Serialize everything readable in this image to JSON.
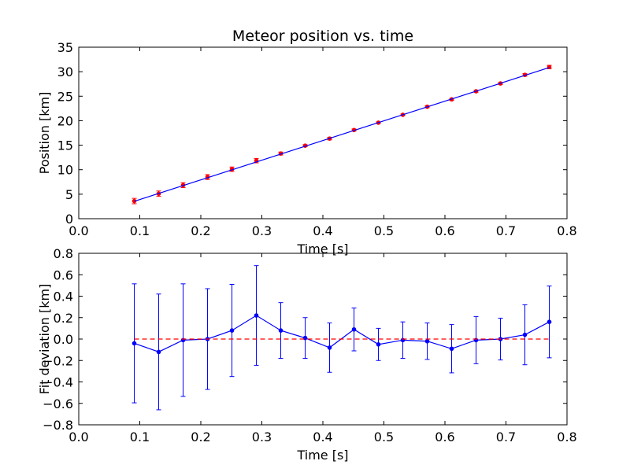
{
  "figure": {
    "title": "Meteor position vs. time"
  },
  "chart_data": [
    {
      "type": "scatter",
      "title": "Meteor position vs. time",
      "xlabel": "Time [s]",
      "ylabel": "Position [km]",
      "xlim": [
        0.0,
        0.8
      ],
      "ylim": [
        0,
        35
      ],
      "x_ticks": [
        0.0,
        0.1,
        0.2,
        0.3,
        0.4,
        0.5,
        0.6,
        0.7,
        0.8
      ],
      "x_tick_labels": [
        "0.0",
        "0.1",
        "0.2",
        "0.3",
        "0.4",
        "0.5",
        "0.6",
        "0.7",
        "0.8"
      ],
      "y_ticks": [
        0,
        5,
        10,
        15,
        20,
        25,
        30,
        35
      ],
      "y_tick_labels": [
        "0",
        "5",
        "10",
        "15",
        "20",
        "25",
        "30",
        "35"
      ],
      "grid": false,
      "legend": "none",
      "series": [
        {
          "kind": "errorbar-points",
          "color": "#ff0000",
          "x": [
            0.091,
            0.131,
            0.171,
            0.211,
            0.251,
            0.291,
            0.331,
            0.371,
            0.411,
            0.451,
            0.491,
            0.531,
            0.571,
            0.611,
            0.651,
            0.691,
            0.731,
            0.771
          ],
          "y": [
            3.6,
            5.1,
            6.85,
            8.5,
            10.1,
            11.85,
            13.3,
            14.9,
            16.35,
            18.1,
            19.6,
            21.2,
            22.85,
            24.35,
            26.0,
            27.6,
            29.35,
            30.95
          ],
          "yerr": [
            0.55,
            0.55,
            0.5,
            0.5,
            0.45,
            0.45,
            0.3,
            0.2,
            0.25,
            0.2,
            0.15,
            0.15,
            0.2,
            0.2,
            0.2,
            0.2,
            0.25,
            0.35
          ]
        },
        {
          "kind": "fit-line",
          "color": "#0000ff",
          "x": [
            0.091,
            0.771
          ],
          "y": [
            3.55,
            30.85
          ]
        }
      ]
    },
    {
      "type": "line",
      "title": "",
      "xlabel": "Time [s]",
      "ylabel": "Fit deviation [km]",
      "xlim": [
        0.0,
        0.8
      ],
      "ylim": [
        -0.8,
        0.8
      ],
      "x_ticks": [
        0.0,
        0.1,
        0.2,
        0.3,
        0.4,
        0.5,
        0.6,
        0.7,
        0.8
      ],
      "x_tick_labels": [
        "0.0",
        "0.1",
        "0.2",
        "0.3",
        "0.4",
        "0.5",
        "0.6",
        "0.7",
        "0.8"
      ],
      "y_ticks": [
        -0.8,
        -0.6,
        -0.4,
        -0.2,
        0.0,
        0.2,
        0.4,
        0.6,
        0.8
      ],
      "y_tick_labels": [
        "−0.8",
        "−0.6",
        "−0.4",
        "−0.2",
        "0.0",
        "0.2",
        "0.4",
        "0.6",
        "0.8"
      ],
      "grid": false,
      "legend": "none",
      "series": [
        {
          "kind": "errorbar-line",
          "color": "#0000ff",
          "x": [
            0.091,
            0.131,
            0.171,
            0.211,
            0.251,
            0.291,
            0.331,
            0.371,
            0.411,
            0.451,
            0.491,
            0.531,
            0.571,
            0.611,
            0.651,
            0.691,
            0.731,
            0.771
          ],
          "y": [
            -0.04,
            -0.12,
            -0.01,
            0.0,
            0.08,
            0.22,
            0.08,
            0.01,
            -0.08,
            0.09,
            -0.05,
            -0.01,
            -0.02,
            -0.09,
            -0.01,
            0.0,
            0.04,
            0.16
          ],
          "yerr": [
            0.555,
            0.54,
            0.525,
            0.47,
            0.43,
            0.465,
            0.26,
            0.19,
            0.23,
            0.2,
            0.15,
            0.17,
            0.17,
            0.225,
            0.22,
            0.195,
            0.28,
            0.335
          ]
        },
        {
          "kind": "zero-line",
          "color": "#ff0000",
          "style": "dashed",
          "x": [
            0.091,
            0.771
          ],
          "y": [
            0.0,
            0.0
          ]
        }
      ]
    }
  ]
}
